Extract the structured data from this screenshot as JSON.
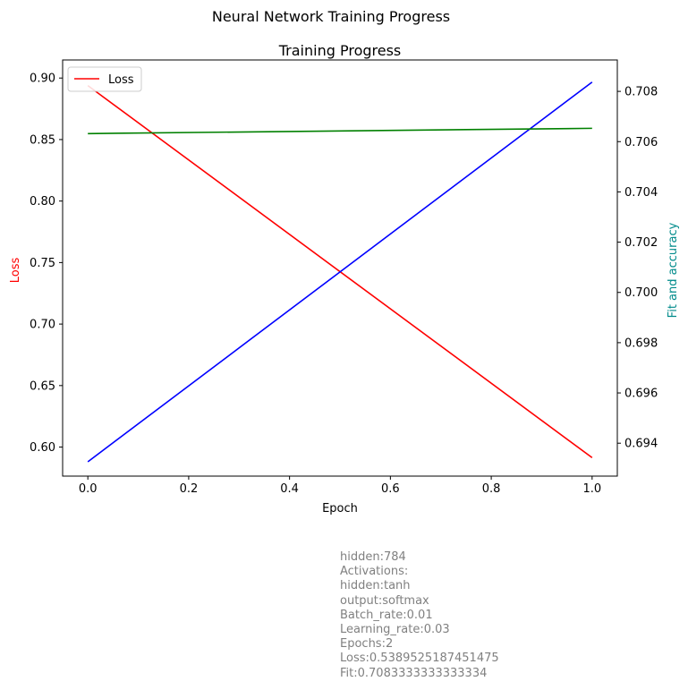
{
  "figure_title": "Neural Network Training Progress",
  "info_lines": [
    "hidden:784",
    "Activations:",
    "hidden:tanh",
    "output:softmax",
    "Batch_rate:0.01",
    "Learning_rate:0.03",
    "Epochs:2",
    "Loss:0.5389525187451475",
    "Fit:0.7083333333333334"
  ],
  "colors": {
    "loss": "#ff0000",
    "accuracy": "#0000ff",
    "fit": "#008000",
    "right_axis_label": "#008b8b",
    "info_text": "#808080"
  },
  "chart_data": {
    "type": "line",
    "title": "Training Progress",
    "xlabel": "Epoch",
    "ylabel_left": "Loss",
    "ylabel_right": "Fit and accuracy",
    "xlim": [
      -0.05,
      1.05
    ],
    "ylim_left": [
      0.5764,
      0.9147
    ],
    "ylim_right": [
      0.69269,
      0.70925
    ],
    "xticks": [
      "0.0",
      "0.2",
      "0.4",
      "0.6",
      "0.8",
      "1.0"
    ],
    "yticks_left": [
      "0.60",
      "0.65",
      "0.70",
      "0.75",
      "0.80",
      "0.85",
      "0.90"
    ],
    "yticks_right": [
      "0.694",
      "0.696",
      "0.698",
      "0.700",
      "0.702",
      "0.704",
      "0.706",
      "0.708"
    ],
    "legend": {
      "placement": "upper-left",
      "entries": [
        "Loss"
      ]
    },
    "grid": false,
    "series": [
      {
        "name": "Loss",
        "axis": "left",
        "color": "#ff0000",
        "x": [
          0,
          1
        ],
        "y": [
          0.8939,
          0.5914
        ]
      },
      {
        "axis": "right",
        "color": "#0000ff",
        "x": [
          0,
          1
        ],
        "y": [
          0.69326,
          0.70837
        ]
      },
      {
        "axis": "right",
        "color": "#008000",
        "x": [
          0,
          1
        ],
        "y": [
          0.70632,
          0.70653
        ]
      }
    ]
  }
}
